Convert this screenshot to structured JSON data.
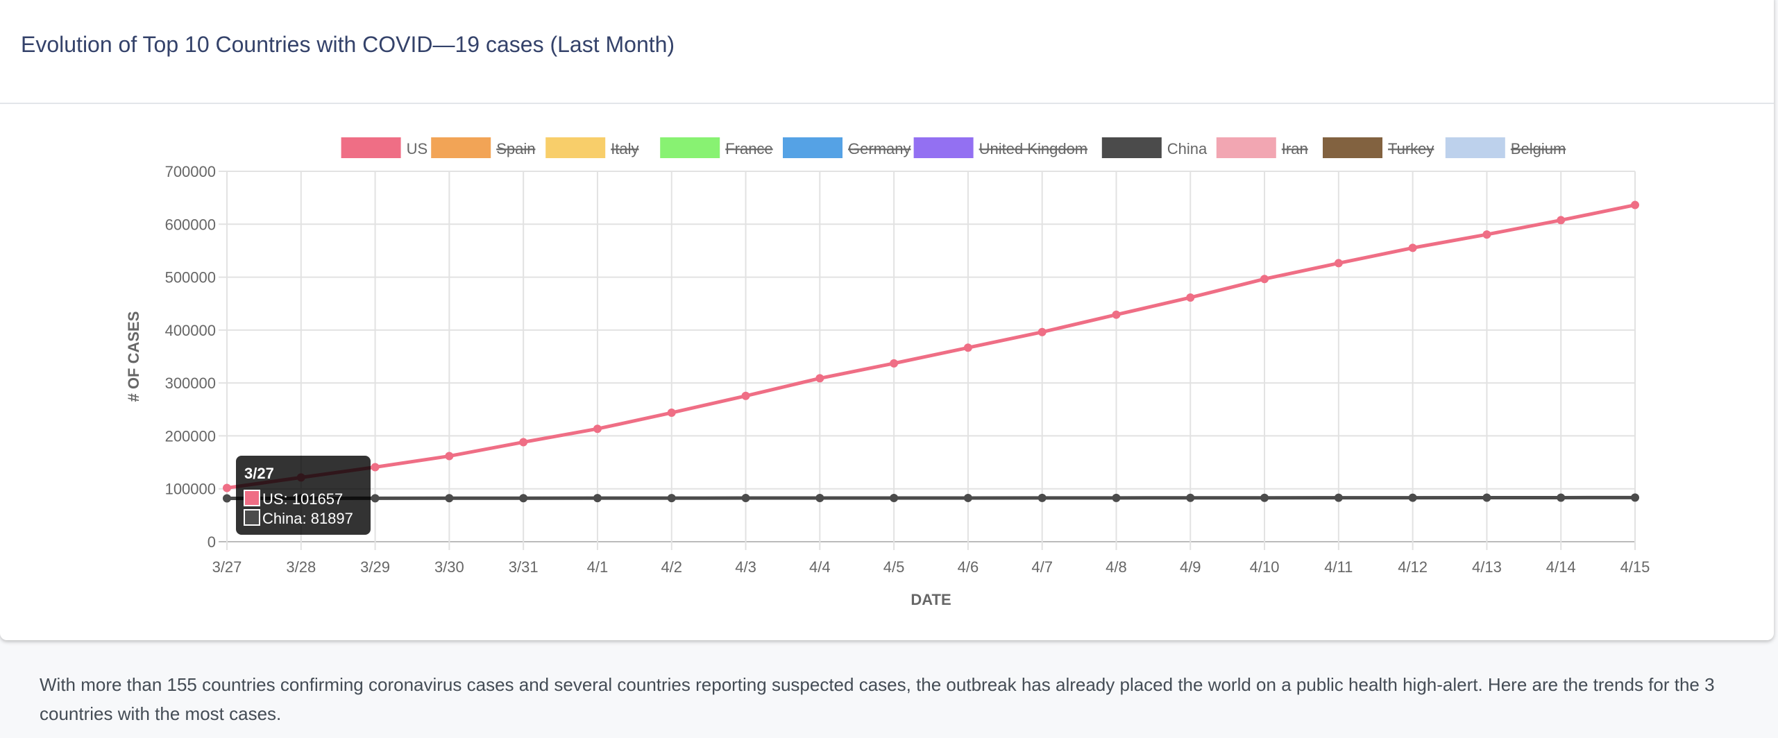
{
  "header": {
    "title": "Evolution of Top 10 Countries with COVID—19 cases (Last Month)"
  },
  "description": "With more than 155 countries confirming coronavirus cases and several countries reporting suspected cases, the outbreak has already placed the world on a public health high-alert. Here are the trends for the 3 countries with the most cases.",
  "chart_data": {
    "type": "line",
    "title": "",
    "xlabel": "DATE",
    "ylabel": "# OF CASES",
    "ylim": [
      0,
      700000
    ],
    "yticks": [
      "0",
      "100000",
      "200000",
      "300000",
      "400000",
      "500000",
      "600000",
      "700000"
    ],
    "grid": true,
    "legend_position": "top",
    "categories": [
      "3/27",
      "3/28",
      "3/29",
      "3/30",
      "3/31",
      "4/1",
      "4/2",
      "4/3",
      "4/4",
      "4/5",
      "4/6",
      "4/7",
      "4/8",
      "4/9",
      "4/10",
      "4/11",
      "4/12",
      "4/13",
      "4/14",
      "4/15"
    ],
    "legend": [
      {
        "name": "US",
        "color": "#ef6e85",
        "hidden": false
      },
      {
        "name": "Spain",
        "color": "#f2a456",
        "hidden": true
      },
      {
        "name": "Italy",
        "color": "#f8ce6a",
        "hidden": true
      },
      {
        "name": "France",
        "color": "#88f272",
        "hidden": true
      },
      {
        "name": "Germany",
        "color": "#55a2e5",
        "hidden": true
      },
      {
        "name": "United Kingdom",
        "color": "#9370f2",
        "hidden": true
      },
      {
        "name": "China",
        "color": "#4b4b4b",
        "hidden": false
      },
      {
        "name": "Iran",
        "color": "#f2a6b2",
        "hidden": true
      },
      {
        "name": "Turkey",
        "color": "#826240",
        "hidden": true
      },
      {
        "name": "Belgium",
        "color": "#bdd1ec",
        "hidden": true
      }
    ],
    "series": [
      {
        "name": "US",
        "color": "#ef6e85",
        "values": [
          101657,
          121465,
          140909,
          161831,
          188172,
          213372,
          243762,
          275586,
          308853,
          337072,
          366667,
          396223,
          429052,
          461437,
          496535,
          526396,
          555313,
          580619,
          607670,
          636350
        ]
      },
      {
        "name": "China",
        "color": "#4b4b4b",
        "values": [
          81897,
          81999,
          82122,
          82198,
          82279,
          82361,
          82432,
          82511,
          82543,
          82602,
          82665,
          82718,
          82809,
          82883,
          82941,
          83014,
          83134,
          83213,
          83306,
          83356
        ]
      }
    ],
    "tooltip": {
      "title": "3/27",
      "lines": [
        {
          "text": "US: 101657",
          "color": "#ef6e85"
        },
        {
          "text": "China: 81897",
          "color": "#4b4b4b"
        }
      ]
    }
  }
}
